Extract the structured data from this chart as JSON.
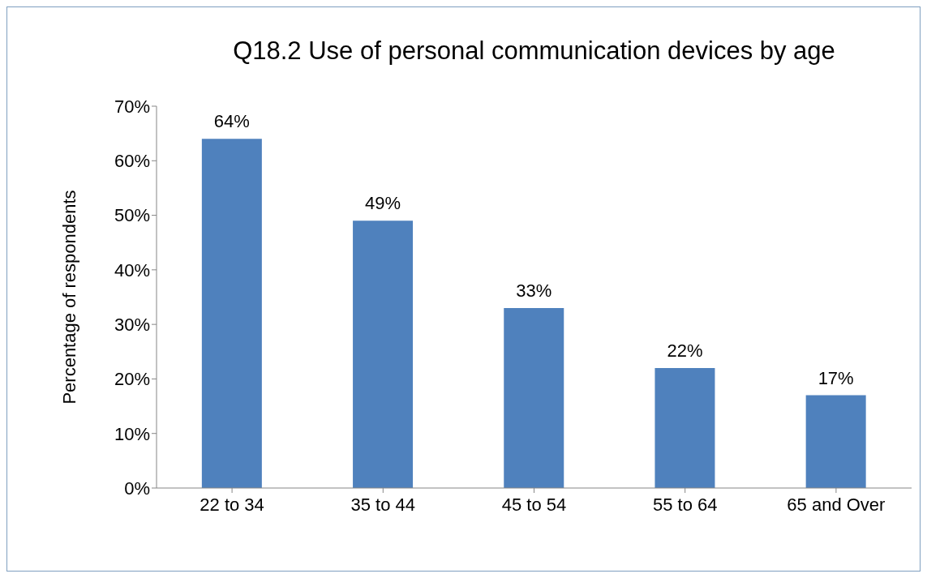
{
  "chart_data": {
    "type": "bar",
    "title": "Q18.2 Use of personal communication devices by age",
    "ylabel": "Percentage of respondents",
    "categories": [
      "22 to 34",
      "35 to 44",
      "45 to 54",
      "55 to 64",
      "65 and Over"
    ],
    "values": [
      64,
      49,
      33,
      22,
      17
    ],
    "value_labels": [
      "64%",
      "49%",
      "33%",
      "22%",
      "17%"
    ],
    "color": "#4f81bd",
    "ylim": [
      0,
      70
    ],
    "yticks": [
      {
        "value": 0,
        "label": "0%"
      },
      {
        "value": 10,
        "label": "10%"
      },
      {
        "value": 20,
        "label": "20%"
      },
      {
        "value": 30,
        "label": "30%"
      },
      {
        "value": 40,
        "label": "40%"
      },
      {
        "value": 50,
        "label": "50%"
      },
      {
        "value": 60,
        "label": "60%"
      },
      {
        "value": 70,
        "label": "70%"
      }
    ],
    "grid": false,
    "legend": false
  }
}
